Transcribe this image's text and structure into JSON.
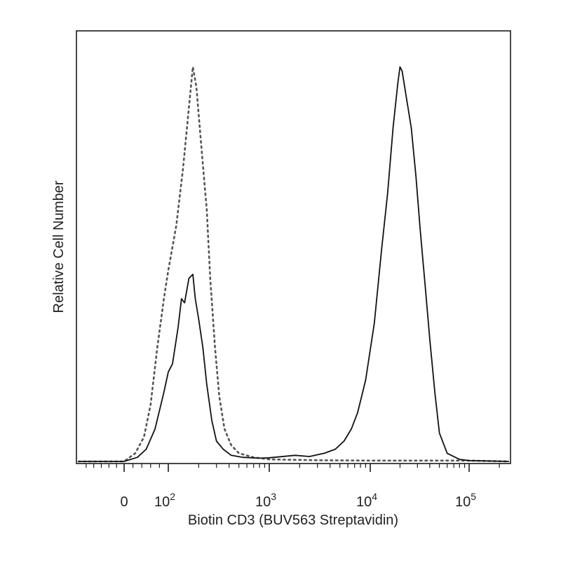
{
  "chart_data": {
    "type": "line",
    "title": "",
    "xlabel": "Biotin CD3 (BUV563 Streptavidin)",
    "ylabel": "Relative Cell Number",
    "x_scale": "biexponential",
    "xlim": [
      -60,
      250000
    ],
    "ylim": [
      0,
      100
    ],
    "x_ticks": [
      {
        "value": 0,
        "label": "0"
      },
      {
        "value": 100,
        "label": "10",
        "exp": "2"
      },
      {
        "value": 1000,
        "label": "10",
        "exp": "3"
      },
      {
        "value": 10000,
        "label": "10",
        "exp": "4"
      },
      {
        "value": 100000,
        "label": "10",
        "exp": "5"
      }
    ],
    "grid": false,
    "series": [
      {
        "style": "dotted",
        "color": "#555555",
        "x": [
          -60,
          0,
          25,
          45,
          60,
          75,
          90,
          100,
          120,
          140,
          160,
          175,
          190,
          205,
          220,
          240,
          260,
          290,
          320,
          360,
          420,
          500,
          700,
          1000,
          3000,
          10000,
          100000,
          250000
        ],
        "y": [
          0,
          0,
          2,
          6,
          14,
          28,
          40,
          47,
          58,
          72,
          87,
          97,
          92,
          82,
          73,
          62,
          45,
          28,
          16,
          8,
          4,
          2,
          1,
          0.5,
          0.3,
          0.2,
          0.2,
          0
        ]
      },
      {
        "style": "solid",
        "color": "#111111",
        "x": [
          -60,
          0,
          30,
          50,
          70,
          90,
          100,
          110,
          125,
          135,
          145,
          160,
          175,
          185,
          200,
          220,
          240,
          270,
          300,
          350,
          420,
          550,
          800,
          1000,
          1800,
          2500,
          3500,
          4500,
          5500,
          6500,
          7500,
          9000,
          11000,
          13000,
          15000,
          17000,
          19000,
          20000,
          21000,
          23000,
          26000,
          29000,
          32000,
          36000,
          40000,
          45000,
          50000,
          60000,
          80000,
          100000,
          250000
        ],
        "y": [
          0,
          0,
          1,
          3,
          8,
          17,
          22,
          24,
          33,
          40,
          39,
          45,
          46,
          40,
          35,
          28,
          19,
          10,
          5,
          3,
          1.5,
          1,
          0.8,
          0.9,
          1.5,
          1.2,
          2,
          3,
          5,
          8,
          12,
          20,
          34,
          52,
          66,
          82,
          93,
          97,
          96,
          90,
          82,
          70,
          57,
          43,
          30,
          17,
          7,
          2,
          0.5,
          0.2,
          0
        ]
      }
    ]
  }
}
